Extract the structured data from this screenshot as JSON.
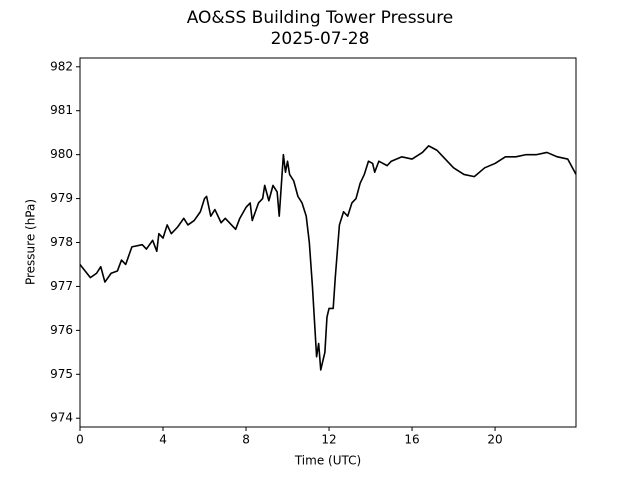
{
  "chart_data": {
    "type": "line",
    "title": "AO&SS Building Tower Pressure",
    "subtitle": "2025-07-28",
    "x_label": "Time (UTC)",
    "y_label": "Pressure (hPa)",
    "color": "#000000",
    "x": [
      0,
      0.5,
      0.8,
      1.0,
      1.2,
      1.5,
      1.8,
      2.0,
      2.2,
      2.5,
      3.0,
      3.2,
      3.5,
      3.7,
      3.8,
      4.0,
      4.2,
      4.4,
      4.7,
      5.0,
      5.2,
      5.5,
      5.8,
      6.0,
      6.1,
      6.3,
      6.5,
      6.8,
      7.0,
      7.3,
      7.5,
      7.7,
      8.0,
      8.2,
      8.3,
      8.6,
      8.8,
      8.9,
      9.1,
      9.3,
      9.5,
      9.6,
      9.7,
      9.8,
      9.9,
      10.0,
      10.1,
      10.3,
      10.5,
      10.7,
      10.9,
      11.05,
      11.2,
      11.3,
      11.4,
      11.5,
      11.6,
      11.8,
      11.9,
      12.0,
      12.2,
      12.3,
      12.5,
      12.7,
      12.9,
      13.1,
      13.3,
      13.5,
      13.7,
      13.9,
      14.1,
      14.2,
      14.4,
      14.8,
      15.0,
      15.5,
      16.0,
      16.5,
      16.8,
      17.2,
      17.6,
      18.0,
      18.5,
      19.0,
      19.5,
      20.0,
      20.5,
      21.0,
      21.5,
      22.0,
      22.5,
      23.0,
      23.5,
      23.9
    ],
    "values": [
      977.5,
      977.2,
      977.3,
      977.45,
      977.1,
      977.3,
      977.35,
      977.6,
      977.5,
      977.9,
      977.95,
      977.85,
      978.05,
      977.8,
      978.2,
      978.1,
      978.4,
      978.2,
      978.35,
      978.55,
      978.4,
      978.5,
      978.7,
      979.0,
      979.05,
      978.6,
      978.75,
      978.45,
      978.55,
      978.4,
      978.3,
      978.55,
      978.8,
      978.9,
      978.5,
      978.9,
      979.0,
      979.3,
      978.95,
      979.3,
      979.15,
      978.6,
      979.3,
      980.0,
      979.6,
      979.85,
      979.55,
      979.4,
      979.05,
      978.9,
      978.6,
      978.0,
      977.0,
      976.2,
      975.4,
      975.7,
      975.1,
      975.5,
      976.3,
      976.5,
      976.5,
      977.2,
      978.4,
      978.7,
      978.6,
      978.9,
      979.0,
      979.35,
      979.55,
      979.85,
      979.8,
      979.6,
      979.85,
      979.75,
      979.85,
      979.95,
      979.9,
      980.05,
      980.2,
      980.1,
      979.9,
      979.7,
      979.55,
      979.5,
      979.7,
      979.8,
      979.95,
      979.95,
      980.0,
      980.0,
      980.05,
      979.95,
      979.9,
      979.55
    ],
    "xlim": [
      0,
      23.9
    ],
    "ylim": [
      973.8,
      982.2
    ],
    "xticks": [
      0,
      4,
      8,
      12,
      16,
      20
    ],
    "yticks": [
      974,
      975,
      976,
      977,
      978,
      979,
      980,
      981,
      982
    ],
    "grid": false
  }
}
